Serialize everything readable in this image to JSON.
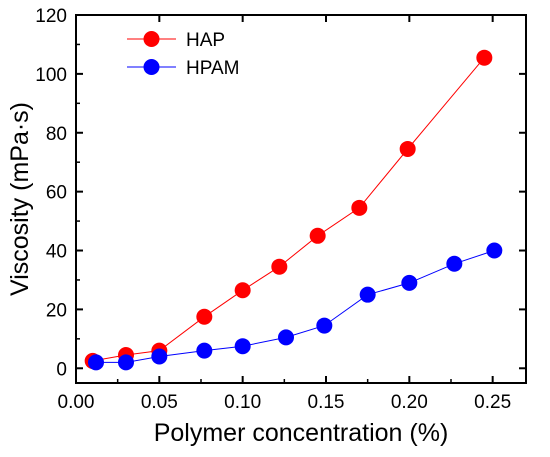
{
  "chart_data": {
    "type": "line",
    "title": "",
    "xlabel": "Polymer concentration (%)",
    "ylabel": "Viscosity (mPa·s)",
    "xlim": [
      0,
      0.27
    ],
    "ylim": [
      -5,
      120
    ],
    "xticks": [
      0.0,
      0.05,
      0.1,
      0.15,
      0.2,
      0.25
    ],
    "xtick_labels": [
      "0.00",
      "0.05",
      "0.10",
      "0.15",
      "0.20",
      "0.25"
    ],
    "yticks": [
      0,
      20,
      40,
      60,
      80,
      100,
      120
    ],
    "ytick_labels": [
      "0",
      "20",
      "40",
      "60",
      "80",
      "100",
      "120"
    ],
    "grid": false,
    "legend_position": "top-left",
    "series": [
      {
        "name": "HAP",
        "color": "#ff0000",
        "marker": "circle",
        "x": [
          0.01,
          0.03,
          0.05,
          0.077,
          0.1,
          0.122,
          0.145,
          0.17,
          0.199,
          0.245
        ],
        "y": [
          2.5,
          4.5,
          6.0,
          17.5,
          26.5,
          34.5,
          45.0,
          54.5,
          74.5,
          105.5
        ]
      },
      {
        "name": "HPAM",
        "color": "#0000ff",
        "marker": "circle",
        "x": [
          0.012,
          0.03,
          0.05,
          0.077,
          0.1,
          0.126,
          0.149,
          0.175,
          0.2,
          0.227,
          0.251
        ],
        "y": [
          2.0,
          2.0,
          4.0,
          6.0,
          7.5,
          10.5,
          14.5,
          25.0,
          29.0,
          35.5,
          40.0
        ]
      }
    ]
  }
}
